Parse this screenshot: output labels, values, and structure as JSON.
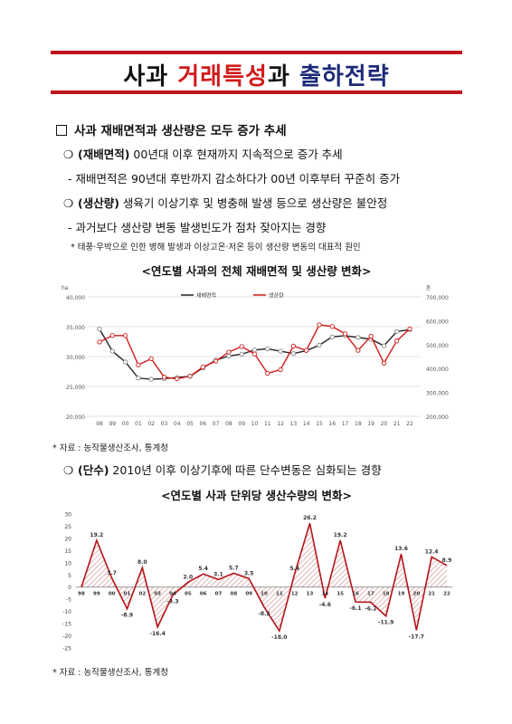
{
  "title": {
    "part1": "사과 ",
    "part2": "거래특성",
    "part3": "과 ",
    "part4": "출하전략"
  },
  "section": {
    "heading": "사과 재배면적과 생산량은 모두 증가 추세"
  },
  "items": {
    "area_label": "(재배면적)",
    "area_text": " 00년대 이후 현재까지 지속적으로 증가 추세",
    "area_detail": "- 재배면적은 90년대 후반까지 감소하다가 00년 이후부터 꾸준히 증가",
    "prod_label": "(생산량)",
    "prod_text": " 생육기 이상기후 및 병충해 발생 등으로 생산량은 불안정",
    "prod_detail": "- 과거보다 생산량 변동 발생빈도가 점차 잦아지는 경향",
    "prod_note": "* 태풍·우박으로 인한 병해 발생과 이상고온·저온 등이 생산량 변동의 대표적 원인",
    "yield_label": "(단수)",
    "yield_text": " 2010년 이후 이상기후에 따른 단수변동은 심화되는 경향"
  },
  "chart1_title": "<연도별 사과의 전체 재배면적 및 생산량 변화>",
  "chart2_title": "<연도별 사과 단위당 생산수량의 변화>",
  "source1": "* 자료 : 농작물생산조사, 통계청",
  "source2": "* 자료 : 농작물생산조사, 통계청",
  "colors": {
    "accent_red": "#c0141c",
    "navy": "#1c2a78",
    "series_area": "#222222",
    "series_prod": "#d21a1a"
  },
  "chart_data": [
    {
      "type": "line",
      "title": "",
      "x": [
        "98",
        "99",
        "00",
        "01",
        "02",
        "03",
        "04",
        "05",
        "06",
        "07",
        "08",
        "09",
        "10",
        "11",
        "12",
        "13",
        "14",
        "15",
        "16",
        "17",
        "18",
        "19",
        "20",
        "21",
        "22"
      ],
      "y_left_unit": "ha",
      "y_right_unit": "톤",
      "ylim_left": [
        20000,
        40000
      ],
      "ylim_right": [
        200000,
        700000
      ],
      "yticks_left": [
        "40,000",
        "35,000",
        "30,000",
        "25,000",
        "20,000"
      ],
      "yticks_right": [
        "700,000",
        "600,000",
        "500,000",
        "400,000",
        "300,000",
        "200,000"
      ],
      "legend": "top-left",
      "grid": true,
      "series": [
        {
          "name": "재배면적",
          "axis": "left",
          "values": [
            34600,
            30900,
            29100,
            26400,
            26200,
            26300,
            26500,
            26700,
            28100,
            29400,
            30100,
            30400,
            31100,
            31300,
            30900,
            30500,
            31000,
            31900,
            33300,
            33500,
            33200,
            32900,
            31800,
            34200,
            34500
          ]
        },
        {
          "name": "생산량",
          "axis": "right",
          "values": [
            511000,
            538000,
            538000,
            415000,
            441000,
            364000,
            357000,
            368000,
            406000,
            431000,
            469000,
            492000,
            461000,
            380000,
            395000,
            494000,
            476000,
            583000,
            576000,
            545000,
            476000,
            535000,
            422000,
            516000,
            566000
          ]
        }
      ]
    },
    {
      "type": "area",
      "title": "",
      "x": [
        "98",
        "99",
        "00",
        "01",
        "02",
        "03",
        "04",
        "05",
        "06",
        "07",
        "08",
        "09",
        "10",
        "11",
        "12",
        "13",
        "14",
        "15",
        "16",
        "17",
        "18",
        "19",
        "20",
        "21",
        "22"
      ],
      "ylim": [
        -25,
        30
      ],
      "yticks": [
        "30",
        "25",
        "20",
        "15",
        "10",
        "5",
        "0",
        "-5",
        "-10",
        "-15",
        "-20",
        "-25"
      ],
      "grid": false,
      "series": [
        {
          "name": "",
          "values": [
            0,
            19.2,
            3.7,
            -8.9,
            8.0,
            -16.4,
            -3.3,
            2.0,
            5.4,
            3.1,
            5.7,
            3.5,
            -8.2,
            -18.0,
            5.4,
            26.2,
            -4.6,
            19.2,
            -6.1,
            -6.2,
            -11.9,
            13.6,
            -17.7,
            12.4,
            8.9
          ],
          "labels": [
            "",
            "19.2",
            "3.7",
            "-8.9",
            "8.0",
            "-16.4",
            "-3.3",
            "2.0",
            "5.4",
            "3.1",
            "5.7",
            "3.5",
            "-8.2",
            "-18.0",
            "5.4",
            "26.2",
            "-4.6",
            "19.2",
            "-6.1",
            "-6.2",
            "-11.9",
            "13.6",
            "-17.7",
            "12.4",
            "8.9"
          ]
        }
      ]
    }
  ]
}
